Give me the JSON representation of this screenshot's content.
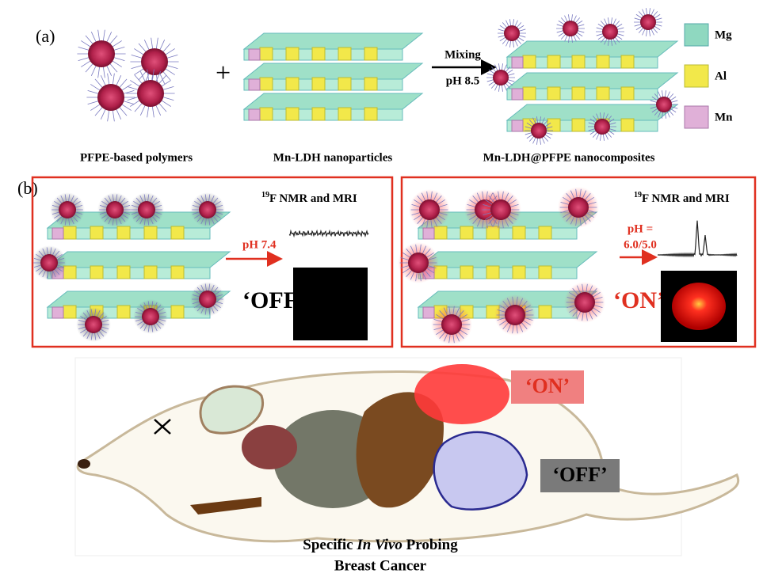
{
  "panel_a": {
    "label": "(a)",
    "plus": "+",
    "arrow_top": "Mixing",
    "arrow_bottom": "pH 8.5",
    "captions": [
      "PFPE-based polymers",
      "Mn-LDH nanoparticles",
      "Mn-LDH@PFPE nanocomposites"
    ],
    "legend": [
      "Mg",
      "Al",
      "Mn"
    ]
  },
  "panel_b": {
    "label": "(b)",
    "left": {
      "isotope": "19",
      "heading": "F NMR and MRI",
      "condition": "pH 7.4",
      "state": "‘OFF’"
    },
    "right": {
      "isotope": "19",
      "heading": "F NMR and MRI",
      "condition_line1": "pH =",
      "condition_line2": "6.0/5.0",
      "state": "‘ON’"
    }
  },
  "mouse": {
    "on_label": "‘ON’",
    "off_label": "‘OFF’",
    "caption_line1": {
      "before": "Specific ",
      "italic": "In Vivo",
      "after": " Probing"
    },
    "caption_line2": "Breast Cancer"
  }
}
